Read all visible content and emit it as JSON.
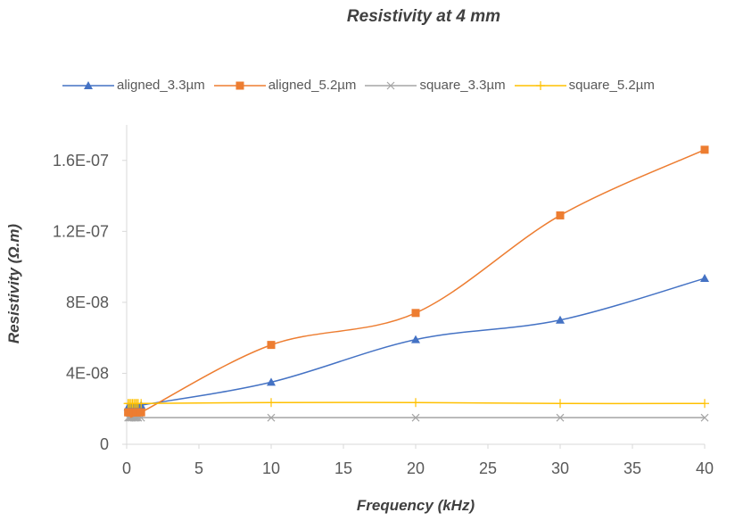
{
  "chart_data": {
    "type": "line",
    "title": "Resistivity at 4 mm",
    "xlabel": "Frequency (kHz)",
    "ylabel": "Resistivity (Ω.m)",
    "xlim": [
      0,
      40
    ],
    "ylim": [
      0,
      1.8e-07
    ],
    "xticks": [
      "0",
      "5",
      "10",
      "15",
      "20",
      "25",
      "30",
      "35",
      "40"
    ],
    "xtick_values": [
      0,
      5,
      10,
      15,
      20,
      25,
      30,
      35,
      40
    ],
    "yticks": [
      "0",
      "4E-08",
      "8E-08",
      "1.2E-07",
      "1.6E-07"
    ],
    "ytick_values": [
      0,
      4e-08,
      8e-08,
      1.2e-07,
      1.6e-07
    ],
    "grid": false,
    "legend_position": "top",
    "series": [
      {
        "name": "aligned_3.3µm",
        "color": "#4472C4",
        "marker": "triangle",
        "x": [
          0.1,
          0.2,
          0.3,
          0.4,
          0.5,
          0.6,
          0.7,
          0.8,
          1,
          10,
          20,
          30,
          40
        ],
        "y": [
          2.1e-08,
          2.1e-08,
          2.1e-08,
          2.1e-08,
          2.1e-08,
          2.1e-08,
          2.1e-08,
          2.1e-08,
          2.2e-08,
          3.5e-08,
          5.9e-08,
          7e-08,
          9.35e-08
        ]
      },
      {
        "name": "aligned_5.2µm",
        "color": "#ED7D31",
        "marker": "square",
        "x": [
          0.1,
          0.2,
          0.3,
          0.4,
          0.5,
          0.6,
          0.7,
          0.8,
          1,
          10,
          20,
          30,
          40
        ],
        "y": [
          1.8e-08,
          1.8e-08,
          1.8e-08,
          1.8e-08,
          1.8e-08,
          1.8e-08,
          1.8e-08,
          1.8e-08,
          1.8e-08,
          5.6e-08,
          7.4e-08,
          1.29e-07,
          1.66e-07
        ]
      },
      {
        "name": "square_3.3µm",
        "color": "#A5A5A5",
        "marker": "x",
        "x": [
          0.1,
          0.2,
          0.3,
          0.4,
          0.5,
          0.6,
          0.7,
          0.8,
          1,
          10,
          20,
          30,
          40
        ],
        "y": [
          1.5e-08,
          1.5e-08,
          1.5e-08,
          1.5e-08,
          1.5e-08,
          1.5e-08,
          1.5e-08,
          1.5e-08,
          1.5e-08,
          1.5e-08,
          1.5e-08,
          1.5e-08,
          1.5e-08
        ]
      },
      {
        "name": "square_5.2µm",
        "color": "#FFC000",
        "marker": "plus",
        "x": [
          0.1,
          0.2,
          0.3,
          0.4,
          0.5,
          0.6,
          0.7,
          0.8,
          1,
          10,
          20,
          30,
          40
        ],
        "y": [
          2.3e-08,
          2.3e-08,
          2.3e-08,
          2.3e-08,
          2.3e-08,
          2.3e-08,
          2.3e-08,
          2.3e-08,
          2.3e-08,
          2.35e-08,
          2.35e-08,
          2.3e-08,
          2.3e-08
        ]
      }
    ]
  }
}
